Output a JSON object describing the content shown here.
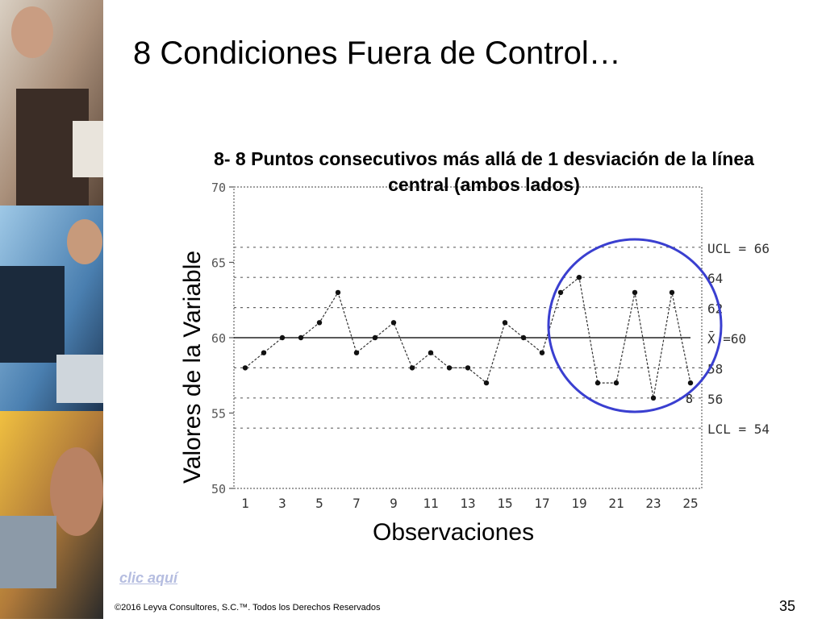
{
  "slide": {
    "title": "8 Condiciones Fuera de Control…",
    "link_text": "clic aquí",
    "footer": "©2016 Leyva Consultores, S.C.™. Todos los Derechos Reservados",
    "page_number": "35"
  },
  "chart_data": {
    "type": "line",
    "title": "8- 8 Puntos consecutivos más allá de 1 desviación de la línea central (ambos lados)",
    "xlabel": "Observaciones",
    "ylabel": "Valores de la Variable",
    "x": [
      1,
      2,
      3,
      4,
      5,
      6,
      7,
      8,
      9,
      10,
      11,
      12,
      13,
      14,
      15,
      16,
      17,
      18,
      19,
      20,
      21,
      22,
      23,
      24,
      25
    ],
    "values": [
      58,
      59,
      60,
      60,
      61,
      63,
      59,
      60,
      61,
      58,
      59,
      58,
      58,
      57,
      61,
      60,
      59,
      63,
      64,
      57,
      57,
      63,
      56,
      63,
      57
    ],
    "ylim": [
      50,
      70
    ],
    "yticks": [
      50,
      55,
      60,
      65,
      70
    ],
    "xticks": [
      1,
      3,
      5,
      7,
      9,
      11,
      13,
      15,
      17,
      19,
      21,
      23,
      25
    ],
    "center_line": {
      "value": 60,
      "label": "X̄ =60"
    },
    "control_lines": [
      {
        "value": 66,
        "label": "UCL = 66"
      },
      {
        "value": 64,
        "label": "64"
      },
      {
        "value": 62,
        "label": "62"
      },
      {
        "value": 58,
        "label": "58"
      },
      {
        "value": 56,
        "label": "56"
      },
      {
        "value": 54,
        "label": "LCL = 54"
      }
    ],
    "extra_point_label": "8",
    "highlight_circle_color": "#3a3fd0",
    "grid": false
  }
}
